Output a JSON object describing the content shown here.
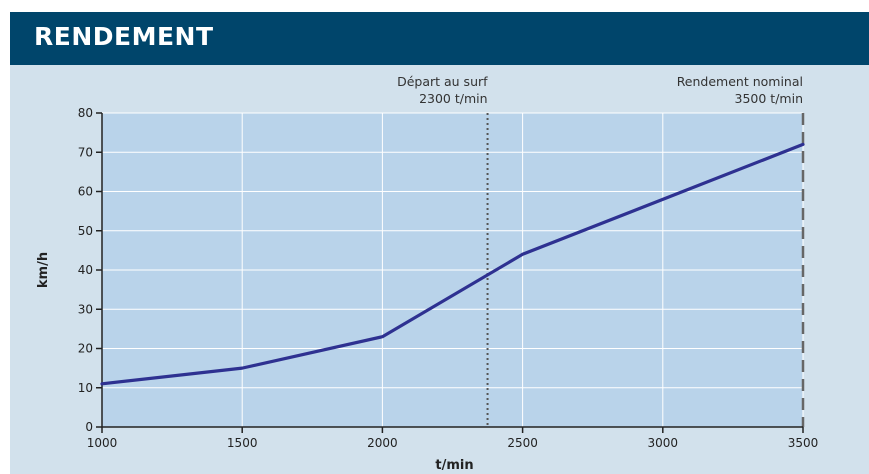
{
  "header": {
    "title": "RENDEMENT"
  },
  "colors": {
    "header_bg": "#00456b",
    "panel_bg": "#d2e1ec",
    "plot_bg": "#b9d3ea",
    "line": "#2e3191",
    "axis": "#222222"
  },
  "chart_data": {
    "type": "line",
    "title": "",
    "xlabel": "t/min",
    "ylabel": "km/h",
    "xlim": [
      1000,
      3500
    ],
    "ylim": [
      0,
      80
    ],
    "x_ticks": [
      1000,
      1500,
      2000,
      2500,
      3000,
      3500
    ],
    "y_ticks": [
      0,
      10,
      20,
      30,
      40,
      50,
      60,
      70,
      80
    ],
    "grid": true,
    "series": [
      {
        "x": [
          1000,
          1500,
          2000,
          2500,
          3500
        ],
        "y": [
          11,
          15,
          23,
          44,
          72
        ]
      }
    ],
    "annotations": [
      {
        "x": 2375,
        "style": "dotted",
        "lines": [
          "Départ au surf",
          "2300 t/min"
        ]
      },
      {
        "x": 3500,
        "style": "dashed",
        "lines": [
          "Rendement nominal",
          "3500 t/min"
        ]
      }
    ]
  }
}
